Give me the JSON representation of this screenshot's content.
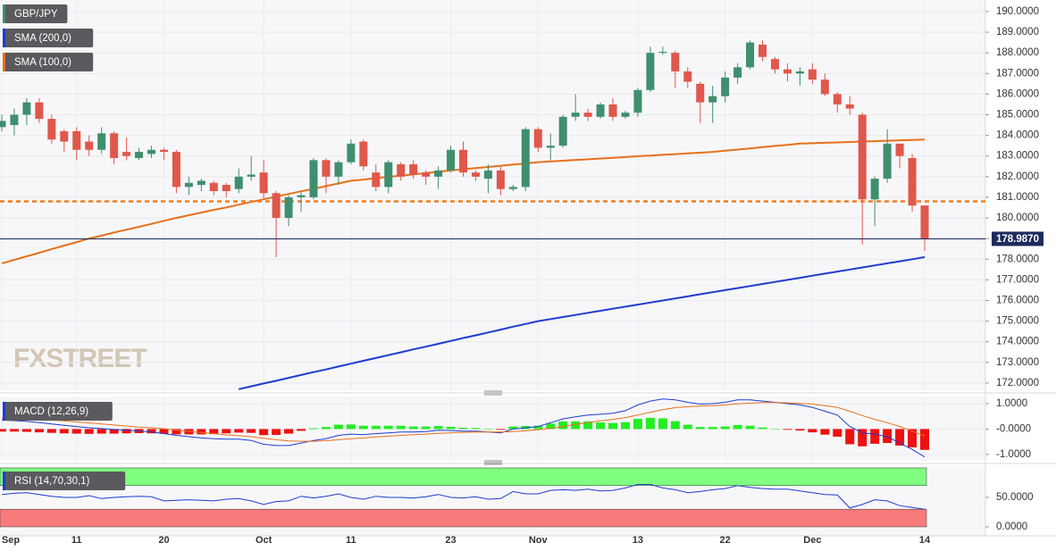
{
  "chart_data": [
    {
      "type": "candlestick",
      "name": "GBP/JPY",
      "watermark": "FXSTREET",
      "categories": [
        "Sep",
        null,
        null,
        null,
        null,
        null,
        "11",
        null,
        null,
        null,
        null,
        null,
        null,
        "20",
        null,
        null,
        null,
        null,
        null,
        null,
        null,
        "Oct",
        null,
        null,
        null,
        null,
        null,
        null,
        "11",
        null,
        null,
        null,
        null,
        null,
        null,
        null,
        "23",
        null,
        null,
        null,
        null,
        null,
        null,
        "Nov",
        null,
        null,
        null,
        null,
        null,
        null,
        null,
        "13",
        null,
        null,
        null,
        null,
        null,
        null,
        "22",
        null,
        null,
        null,
        null,
        null,
        null,
        "Dec",
        null,
        null,
        null,
        null,
        null,
        null,
        null,
        null,
        "14"
      ],
      "ohlc": [
        [
          184.4,
          185.0,
          184.2,
          184.7
        ],
        [
          184.5,
          185.3,
          184.0,
          185.0
        ],
        [
          185.0,
          185.8,
          184.5,
          185.6
        ],
        [
          185.6,
          185.8,
          184.6,
          184.8
        ],
        [
          184.8,
          185.0,
          183.6,
          183.8
        ],
        [
          184.2,
          184.3,
          183.2,
          183.7
        ],
        [
          184.2,
          184.4,
          182.8,
          183.3
        ],
        [
          183.7,
          184.0,
          183.0,
          183.3
        ],
        [
          183.3,
          184.4,
          183.1,
          184.1
        ],
        [
          184.1,
          184.2,
          182.6,
          182.9
        ],
        [
          183.2,
          183.9,
          182.8,
          183.0
        ],
        [
          182.9,
          183.4,
          182.8,
          183.2
        ],
        [
          183.1,
          183.5,
          182.9,
          183.3
        ],
        [
          183.3,
          183.4,
          182.8,
          183.2
        ],
        [
          183.2,
          183.3,
          181.2,
          181.5
        ],
        [
          181.5,
          182.0,
          181.1,
          181.7
        ],
        [
          181.6,
          181.9,
          181.3,
          181.8
        ],
        [
          181.7,
          181.8,
          181.1,
          181.3
        ],
        [
          181.6,
          181.7,
          181.0,
          181.3
        ],
        [
          181.4,
          182.4,
          181.2,
          182.0
        ],
        [
          182.0,
          183.0,
          181.8,
          182.1
        ],
        [
          182.2,
          182.8,
          180.9,
          181.2
        ],
        [
          181.2,
          181.3,
          178.1,
          180.0
        ],
        [
          180.0,
          181.1,
          179.6,
          181.0
        ],
        [
          181.0,
          181.3,
          180.3,
          181.1
        ],
        [
          181.0,
          182.9,
          180.9,
          182.8
        ],
        [
          182.8,
          182.9,
          181.2,
          182.0
        ],
        [
          182.0,
          182.8,
          181.6,
          182.7
        ],
        [
          182.7,
          183.8,
          182.6,
          183.6
        ],
        [
          183.7,
          183.8,
          182.3,
          182.5
        ],
        [
          182.2,
          182.6,
          181.3,
          181.5
        ],
        [
          181.5,
          182.8,
          181.2,
          182.7
        ],
        [
          182.6,
          182.7,
          181.8,
          182.0
        ],
        [
          182.6,
          182.8,
          181.9,
          182.1
        ],
        [
          182.2,
          182.3,
          181.6,
          182.0
        ],
        [
          182.0,
          182.5,
          181.4,
          182.3
        ],
        [
          182.3,
          183.5,
          182.2,
          183.3
        ],
        [
          183.3,
          183.7,
          182.0,
          182.2
        ],
        [
          182.2,
          182.3,
          181.8,
          182.0
        ],
        [
          181.9,
          182.6,
          181.2,
          182.3
        ],
        [
          182.3,
          182.5,
          181.1,
          181.4
        ],
        [
          181.4,
          181.6,
          181.3,
          181.5
        ],
        [
          181.5,
          184.4,
          181.3,
          184.3
        ],
        [
          184.3,
          184.4,
          183.2,
          183.4
        ],
        [
          183.4,
          184.1,
          182.8,
          183.5
        ],
        [
          183.5,
          185.0,
          183.4,
          184.9
        ],
        [
          184.9,
          186.0,
          184.7,
          185.1
        ],
        [
          185.1,
          185.3,
          184.7,
          184.9
        ],
        [
          184.9,
          185.6,
          184.8,
          185.5
        ],
        [
          185.5,
          185.8,
          184.7,
          184.9
        ],
        [
          184.9,
          185.2,
          184.8,
          185.1
        ],
        [
          185.1,
          186.3,
          184.9,
          186.2
        ],
        [
          186.2,
          188.3,
          186.1,
          188.0
        ],
        [
          188.0,
          188.3,
          187.9,
          188.05
        ],
        [
          188.0,
          188.1,
          186.3,
          187.1
        ],
        [
          187.1,
          187.3,
          186.3,
          186.6
        ],
        [
          186.5,
          186.6,
          184.6,
          185.6
        ],
        [
          185.6,
          186.4,
          184.6,
          185.9
        ],
        [
          185.9,
          187.1,
          185.6,
          186.8
        ],
        [
          186.8,
          187.5,
          186.5,
          187.3
        ],
        [
          187.3,
          188.6,
          187.2,
          188.5
        ],
        [
          188.4,
          188.6,
          187.6,
          187.8
        ],
        [
          187.7,
          187.8,
          187.0,
          187.2
        ],
        [
          187.2,
          187.5,
          186.6,
          187.0
        ],
        [
          187.0,
          187.3,
          186.4,
          187.1
        ],
        [
          187.2,
          187.5,
          186.5,
          186.7
        ],
        [
          186.7,
          187.0,
          185.9,
          186.0
        ],
        [
          186.0,
          186.1,
          185.1,
          185.5
        ],
        [
          185.5,
          185.9,
          185.0,
          185.3
        ],
        [
          185.0,
          185.1,
          178.7,
          180.9
        ],
        [
          180.9,
          182.0,
          179.6,
          181.9
        ],
        [
          181.9,
          184.3,
          181.7,
          183.6
        ],
        [
          183.6,
          183.6,
          182.4,
          183.0
        ],
        [
          182.9,
          183.1,
          180.3,
          180.6
        ],
        [
          180.6,
          180.6,
          178.4,
          178.987
        ]
      ],
      "up_color": "#3f8f6f",
      "down_color": "#e0574b",
      "legend_color": "#3f8f6f",
      "ylim": [
        171.65,
        190.56
      ],
      "yticks": [
        {
          "value": 172,
          "label": "172.0000"
        },
        {
          "value": 173,
          "label": "173.0000"
        },
        {
          "value": 174,
          "label": "174.0000"
        },
        {
          "value": 175,
          "label": "175.0000"
        },
        {
          "value": 176,
          "label": "176.0000"
        },
        {
          "value": 177,
          "label": "177.0000"
        },
        {
          "value": 178,
          "label": "178.0000"
        },
        {
          "value": 179,
          "label": "179.0000"
        },
        {
          "value": 180,
          "label": "180.0000"
        },
        {
          "value": 181,
          "label": "181.0000"
        },
        {
          "value": 182,
          "label": "182.0000"
        },
        {
          "value": 183,
          "label": "183.0000"
        },
        {
          "value": 184,
          "label": "184.0000"
        },
        {
          "value": 185,
          "label": "185.0000"
        },
        {
          "value": 186,
          "label": "186.0000"
        },
        {
          "value": 187,
          "label": "187.0000"
        },
        {
          "value": 188,
          "label": "188.0000"
        },
        {
          "value": 189,
          "label": "189.0000"
        },
        {
          "value": 190,
          "label": "190.0000"
        }
      ],
      "grid": true,
      "last_price": {
        "value": 178.987,
        "label": "178.9870"
      },
      "level": 180.8,
      "level_color": "#f07f22",
      "series": [
        {
          "name": "SMA (200,0)",
          "color": "#1d3ccf",
          "values": [
            null,
            null,
            null,
            null,
            null,
            null,
            null,
            null,
            null,
            null,
            null,
            null,
            null,
            null,
            null,
            null,
            null,
            null,
            null,
            171.7,
            171.84,
            171.98,
            172.11,
            172.25,
            172.39,
            172.53,
            172.66,
            172.8,
            172.94,
            173.08,
            173.21,
            173.35,
            173.49,
            173.63,
            173.76,
            173.9,
            174.04,
            174.18,
            174.31,
            174.45,
            174.59,
            174.73,
            174.86,
            175.0,
            175.1,
            175.2,
            175.3,
            175.4,
            175.5,
            175.6,
            175.7,
            175.8,
            175.9,
            176.0,
            176.1,
            176.2,
            176.3,
            176.4,
            176.5,
            176.6,
            176.7,
            176.8,
            176.9,
            177.0,
            177.1,
            177.2,
            177.3,
            177.4,
            177.5,
            177.6,
            177.7,
            177.8,
            177.9,
            178.0,
            178.1
          ]
        },
        {
          "name": "SMA (100,0)",
          "color": "#e8701a",
          "values": [
            177.8,
            177.97,
            178.14,
            178.31,
            178.49,
            178.66,
            178.83,
            179.0,
            179.14,
            179.29,
            179.43,
            179.57,
            179.71,
            179.86,
            180.0,
            180.13,
            180.26,
            180.39,
            180.51,
            180.64,
            180.77,
            180.9,
            181.03,
            181.16,
            181.29,
            181.41,
            181.54,
            181.67,
            181.8,
            181.86,
            181.93,
            181.99,
            182.05,
            182.11,
            182.18,
            182.24,
            182.3,
            182.36,
            182.41,
            182.47,
            182.53,
            182.59,
            182.64,
            182.7,
            182.74,
            182.77,
            182.81,
            182.84,
            182.88,
            182.91,
            182.95,
            182.99,
            183.02,
            183.06,
            183.09,
            183.13,
            183.16,
            183.2,
            183.26,
            183.31,
            183.37,
            183.43,
            183.49,
            183.54,
            183.6,
            183.62,
            183.64,
            183.66,
            183.68,
            183.7,
            183.72,
            183.74,
            183.76,
            183.78,
            183.8
          ]
        }
      ]
    },
    {
      "type": "macd",
      "name": "MACD (12,26,9)",
      "legend_color": "#1d3ccf",
      "ylim": [
        -1.25,
        1.28
      ],
      "yticks": [
        {
          "value": 1,
          "label": "1.0000"
        },
        {
          "value": 0,
          "label": "-0.0000"
        },
        {
          "value": -1,
          "label": "-1.0000"
        }
      ],
      "grid": true,
      "histogram": {
        "up_color": "#22ee22",
        "down_color": "#ee1111",
        "values": [
          -0.1,
          -0.1,
          -0.11,
          -0.13,
          -0.15,
          -0.17,
          -0.18,
          -0.19,
          -0.18,
          -0.18,
          -0.17,
          -0.16,
          -0.17,
          -0.19,
          -0.21,
          -0.21,
          -0.21,
          -0.2,
          -0.17,
          -0.14,
          -0.15,
          -0.24,
          -0.23,
          -0.18,
          -0.07,
          0.03,
          0.08,
          0.17,
          0.18,
          0.13,
          0.13,
          0.13,
          0.13,
          0.1,
          0.1,
          0.12,
          0.09,
          0.05,
          0.04,
          0.0,
          -0.03,
          0.1,
          0.12,
          0.13,
          0.22,
          0.3,
          0.3,
          0.3,
          0.26,
          0.24,
          0.27,
          0.4,
          0.44,
          0.42,
          0.31,
          0.17,
          0.08,
          0.08,
          0.1,
          0.16,
          0.13,
          0.06,
          0.01,
          -0.03,
          -0.06,
          -0.13,
          -0.22,
          -0.3,
          -0.6,
          -0.68,
          -0.58,
          -0.55,
          -0.65,
          -0.72,
          -0.82
        ]
      },
      "series": [
        {
          "color": "#1d3ccf",
          "values": [
            0.35,
            0.33,
            0.3,
            0.25,
            0.2,
            0.15,
            0.1,
            0.05,
            0.02,
            -0.02,
            -0.05,
            -0.08,
            -0.12,
            -0.18,
            -0.25,
            -0.3,
            -0.35,
            -0.38,
            -0.4,
            -0.4,
            -0.45,
            -0.6,
            -0.65,
            -0.65,
            -0.55,
            -0.45,
            -0.38,
            -0.25,
            -0.2,
            -0.22,
            -0.18,
            -0.15,
            -0.12,
            -0.12,
            -0.1,
            -0.05,
            -0.06,
            -0.08,
            -0.08,
            -0.12,
            -0.15,
            0.0,
            0.05,
            0.1,
            0.25,
            0.4,
            0.48,
            0.55,
            0.58,
            0.62,
            0.72,
            0.95,
            1.1,
            1.18,
            1.15,
            1.05,
            0.98,
            1.0,
            1.05,
            1.15,
            1.15,
            1.1,
            1.05,
            1.0,
            0.95,
            0.85,
            0.7,
            0.55,
            0.1,
            -0.15,
            -0.2,
            -0.3,
            -0.55,
            -0.8,
            -1.1
          ]
        },
        {
          "color": "#e8701a",
          "values": [
            0.45,
            0.43,
            0.41,
            0.38,
            0.35,
            0.32,
            0.28,
            0.24,
            0.2,
            0.16,
            0.12,
            0.08,
            0.05,
            0.01,
            -0.04,
            -0.09,
            -0.14,
            -0.18,
            -0.23,
            -0.26,
            -0.3,
            -0.36,
            -0.42,
            -0.47,
            -0.48,
            -0.48,
            -0.46,
            -0.42,
            -0.38,
            -0.35,
            -0.31,
            -0.28,
            -0.25,
            -0.22,
            -0.2,
            -0.17,
            -0.15,
            -0.13,
            -0.12,
            -0.12,
            -0.12,
            -0.1,
            -0.07,
            -0.03,
            0.03,
            0.1,
            0.18,
            0.25,
            0.32,
            0.38,
            0.45,
            0.55,
            0.66,
            0.76,
            0.84,
            0.88,
            0.9,
            0.92,
            0.95,
            0.99,
            1.02,
            1.04,
            1.04,
            1.03,
            1.01,
            0.98,
            0.92,
            0.85,
            0.7,
            0.53,
            0.38,
            0.25,
            0.1,
            -0.08,
            -0.28
          ]
        }
      ]
    },
    {
      "type": "rsi",
      "name": "RSI (14,70,30,1)",
      "legend_color": "#1d3ccf",
      "ylim": [
        -15.2,
        103
      ],
      "yticks": [
        {
          "value": 0,
          "label": "0.0000"
        },
        {
          "value": 50,
          "label": "50.0000"
        }
      ],
      "overbought": 70,
      "oversold": 30,
      "overbought_color": "#80ff80",
      "oversold_color": "#f77b7b",
      "color": "#1d3ccf",
      "values": [
        55,
        57,
        58,
        55,
        52,
        50,
        50,
        53,
        48,
        50,
        51,
        52,
        51,
        44,
        45,
        46,
        45,
        44,
        47,
        48,
        44,
        38,
        43,
        44,
        52,
        49,
        52,
        56,
        50,
        47,
        52,
        50,
        50,
        49,
        51,
        55,
        50,
        49,
        51,
        47,
        48,
        60,
        56,
        56,
        62,
        63,
        62,
        64,
        61,
        62,
        66,
        72,
        72,
        66,
        63,
        58,
        60,
        63,
        65,
        70,
        67,
        65,
        64,
        64,
        61,
        58,
        55,
        54,
        32,
        38,
        46,
        44,
        36,
        33,
        30
      ]
    }
  ]
}
